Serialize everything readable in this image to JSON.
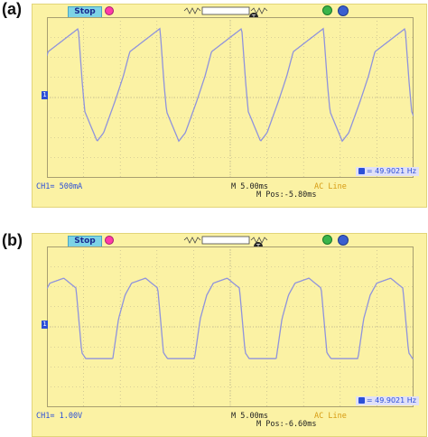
{
  "panels": [
    {
      "label": "(a)",
      "status": "Stop",
      "channel": "CH1= 500mA",
      "timebase": "M 5.00ms",
      "position": "M Pos:-5.80ms",
      "trigger_source": "AC Line",
      "frequency": "= 49.9021 Hz",
      "ground_marker": "1",
      "trigger_marker": "T"
    },
    {
      "label": "(b)",
      "status": "Stop",
      "channel": "CH1= 1.00V",
      "timebase": "M 5.00ms",
      "position": "M Pos:-6.60ms",
      "trigger_source": "AC Line",
      "frequency": "= 49.9021 Hz",
      "ground_marker": "1",
      "trigger_marker": "T"
    }
  ],
  "colors": {
    "screen_bg": "#fbf2a4",
    "trace": "#8f93dc",
    "grid": "#b8b08a",
    "channel_text": "#2b4fd8",
    "trigger_text": "#d69a10"
  },
  "icons": [
    "pen-icon",
    "timebase-icon",
    "trigger-icon",
    "usb-icon",
    "settings-icon",
    "frequency-icon"
  ]
}
